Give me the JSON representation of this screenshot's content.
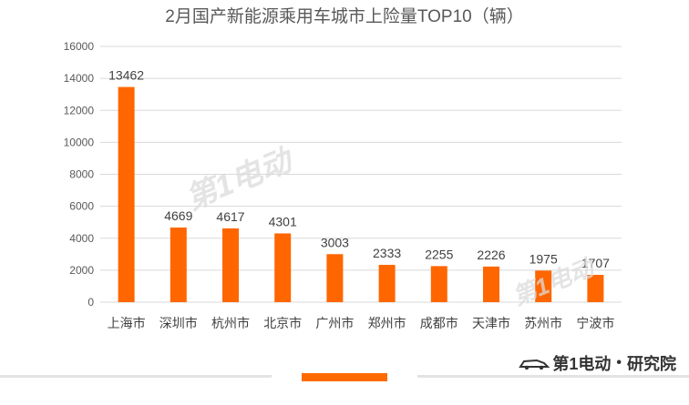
{
  "chart_data": {
    "type": "bar",
    "title": "2月国产新能源乘用车城市上险量TOP10（辆）",
    "categories": [
      "上海市",
      "深圳市",
      "杭州市",
      "北京市",
      "广州市",
      "郑州市",
      "成都市",
      "天津市",
      "苏州市",
      "宁波市"
    ],
    "values": [
      13462,
      4669,
      4617,
      4301,
      3003,
      2333,
      2255,
      2226,
      1975,
      1707
    ],
    "xlabel": "",
    "ylabel": "",
    "ylim": [
      0,
      16000
    ],
    "yticks": [
      0,
      2000,
      4000,
      6000,
      8000,
      10000,
      12000,
      14000,
      16000
    ],
    "grid": true,
    "bar_color": "#ff6600",
    "data_labels": true
  },
  "branding": {
    "logo_number": "1",
    "logo_text": "第1电动",
    "separator": "•",
    "suffix": "研究院",
    "accent_color": "#ff6a00"
  },
  "watermark": {
    "text": "第1电动"
  }
}
